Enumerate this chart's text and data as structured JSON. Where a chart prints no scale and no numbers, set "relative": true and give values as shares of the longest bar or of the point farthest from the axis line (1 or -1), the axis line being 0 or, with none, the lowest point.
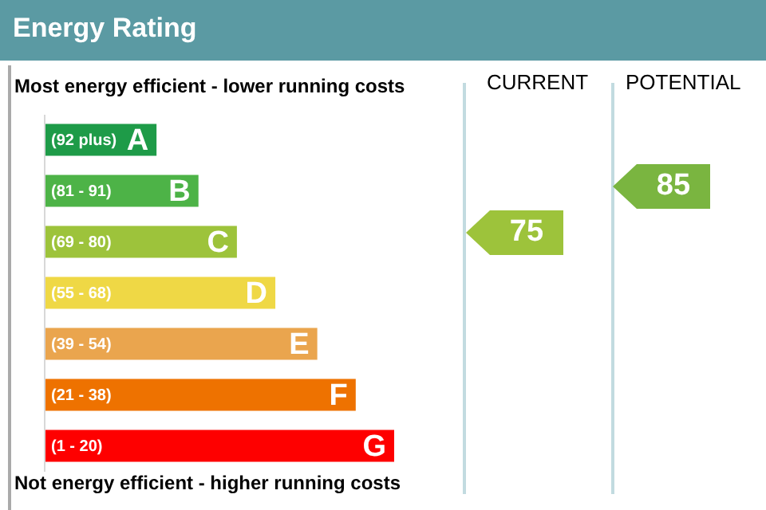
{
  "chart_data": {
    "type": "bar",
    "orientation": "horizontal",
    "relative": true,
    "title": "Energy Rating",
    "categories": [
      "(92 plus) A",
      "(81 - 91) B",
      "(69 - 80) C",
      "(55 - 68) D",
      "(39 - 54) E",
      "(21 - 38) F",
      "(1 - 20) G"
    ],
    "values": [
      0.32,
      0.44,
      0.55,
      0.66,
      0.78,
      0.89,
      1
    ],
    "colors": [
      "#1e9b48",
      "#4db347",
      "#9dc33b",
      "#efd845",
      "#eaa54e",
      "#ee7200",
      "#fe0000"
    ],
    "annotations": [
      "Most energy efficient - lower running costs",
      "Not energy efficient - higher running costs",
      "CURRENT",
      "POTENTIAL",
      "75",
      "85"
    ]
  }
}
